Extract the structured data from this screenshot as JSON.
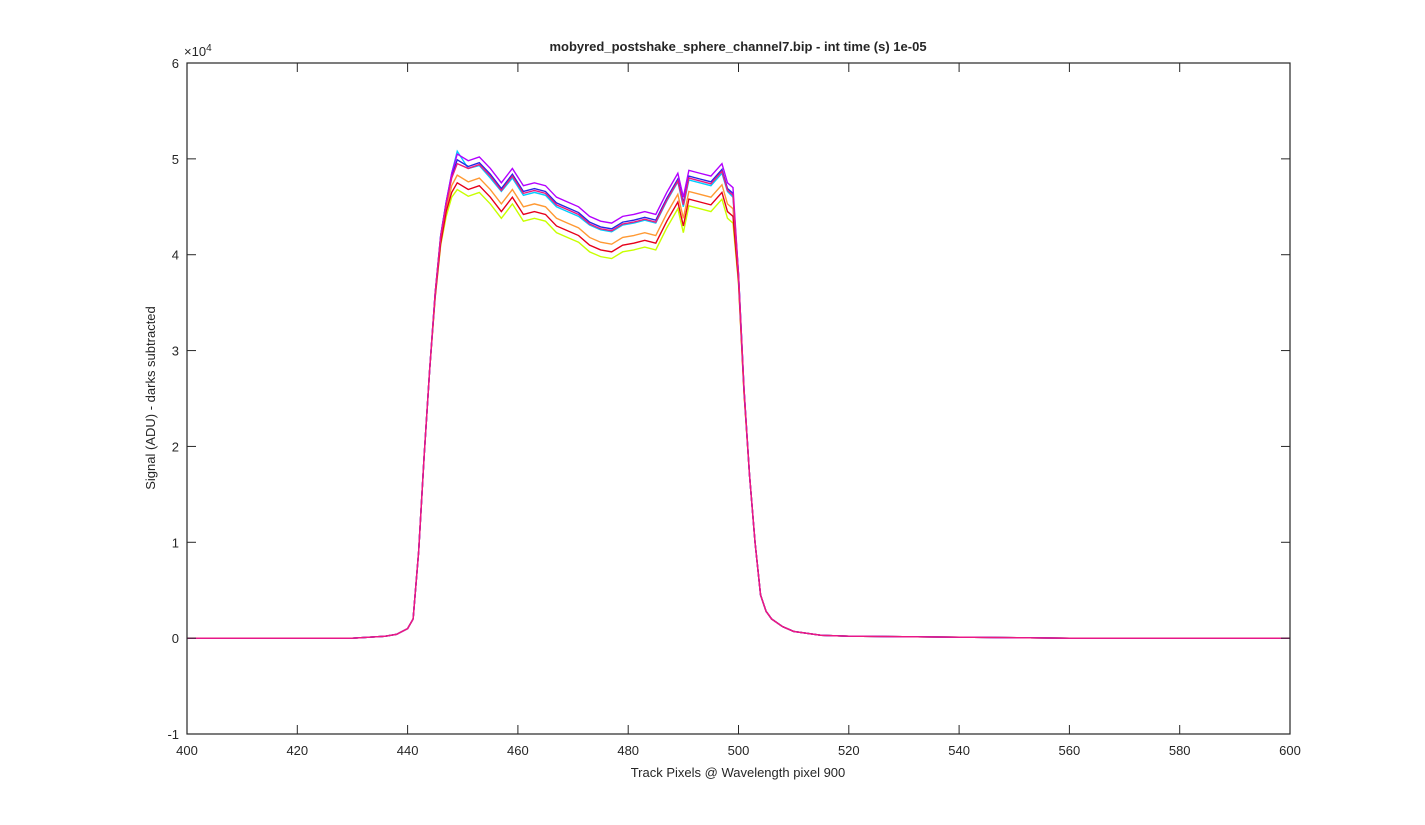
{
  "chart_data": {
    "type": "line",
    "title": "mobyred_postshake_sphere_channel7.bip - int time (s) 1e-05",
    "x_label": "Track Pixels @ Wavelength pixel 900",
    "y_label": "Signal (ADU) - darks subtracted",
    "y_multiplier": {
      "base": "×10",
      "exponent": "4"
    },
    "xlim": [
      400,
      600
    ],
    "xticks": [
      400,
      420,
      440,
      460,
      480,
      500,
      520,
      540,
      560,
      580,
      600
    ],
    "ylim": [
      -1,
      6
    ],
    "yticks": [
      -1,
      0,
      1,
      2,
      3,
      4,
      5,
      6
    ],
    "grid": false,
    "x": [
      400,
      420,
      430,
      436,
      438,
      440,
      441,
      442,
      443,
      444,
      445,
      446,
      447,
      448,
      449,
      451,
      453,
      455,
      457,
      459,
      461,
      463,
      465,
      467,
      469,
      471,
      473,
      475,
      477,
      479,
      481,
      483,
      485,
      487,
      489,
      490,
      491,
      493,
      495,
      497,
      498,
      499,
      500,
      501,
      502,
      503,
      504,
      505,
      506,
      508,
      510,
      515,
      520,
      540,
      560,
      580,
      600
    ],
    "series": [
      {
        "color": "#c8ff00",
        "values": [
          0,
          0,
          0,
          0.02,
          0.04,
          0.1,
          0.2,
          0.9,
          1.9,
          2.8,
          3.55,
          4.1,
          4.4,
          4.6,
          4.68,
          4.61,
          4.65,
          4.53,
          4.38,
          4.53,
          4.35,
          4.38,
          4.35,
          4.23,
          4.18,
          4.13,
          4.03,
          3.98,
          3.96,
          4.03,
          4.05,
          4.08,
          4.05,
          4.28,
          4.48,
          4.23,
          4.51,
          4.48,
          4.45,
          4.58,
          4.38,
          4.33,
          3.7,
          2.55,
          1.7,
          1.0,
          0.45,
          0.28,
          0.2,
          0.12,
          0.07,
          0.03,
          0.02,
          0.01,
          0,
          0,
          0
        ]
      },
      {
        "color": "#ff9933",
        "values": [
          0,
          0,
          0,
          0.02,
          0.04,
          0.1,
          0.2,
          0.9,
          1.9,
          2.8,
          3.58,
          4.15,
          4.48,
          4.72,
          4.83,
          4.76,
          4.8,
          4.68,
          4.53,
          4.68,
          4.5,
          4.53,
          4.5,
          4.38,
          4.33,
          4.28,
          4.18,
          4.13,
          4.11,
          4.18,
          4.2,
          4.23,
          4.2,
          4.43,
          4.63,
          4.38,
          4.66,
          4.63,
          4.6,
          4.73,
          4.53,
          4.48,
          3.75,
          2.58,
          1.7,
          1.0,
          0.45,
          0.28,
          0.2,
          0.12,
          0.07,
          0.03,
          0.02,
          0.01,
          0,
          0,
          0
        ]
      },
      {
        "color": "#e6001a",
        "values": [
          0,
          0,
          0,
          0.02,
          0.04,
          0.1,
          0.2,
          0.9,
          1.9,
          2.8,
          3.56,
          4.12,
          4.45,
          4.65,
          4.75,
          4.68,
          4.72,
          4.6,
          4.45,
          4.6,
          4.42,
          4.45,
          4.42,
          4.3,
          4.25,
          4.2,
          4.1,
          4.05,
          4.03,
          4.1,
          4.12,
          4.15,
          4.12,
          4.35,
          4.55,
          4.3,
          4.58,
          4.55,
          4.52,
          4.65,
          4.45,
          4.4,
          3.72,
          2.56,
          1.7,
          1.0,
          0.45,
          0.28,
          0.2,
          0.12,
          0.07,
          0.03,
          0.02,
          0.01,
          0,
          0,
          0
        ]
      },
      {
        "color": "#00ccff",
        "values": [
          0,
          0,
          0,
          0.02,
          0.04,
          0.1,
          0.2,
          0.9,
          1.9,
          2.8,
          3.6,
          4.2,
          4.55,
          4.85,
          5.08,
          4.9,
          4.93,
          4.8,
          4.66,
          4.8,
          4.62,
          4.65,
          4.62,
          4.5,
          4.45,
          4.4,
          4.31,
          4.26,
          4.24,
          4.31,
          4.33,
          4.36,
          4.33,
          4.56,
          4.76,
          4.5,
          4.78,
          4.75,
          4.72,
          4.85,
          4.66,
          4.6,
          3.8,
          2.6,
          1.7,
          1.0,
          0.45,
          0.28,
          0.2,
          0.12,
          0.07,
          0.03,
          0.02,
          0.01,
          0,
          0,
          0
        ]
      },
      {
        "color": "#2626e6",
        "values": [
          0,
          0,
          0,
          0.02,
          0.04,
          0.1,
          0.2,
          0.9,
          1.9,
          2.8,
          3.6,
          4.2,
          4.55,
          4.82,
          4.99,
          4.92,
          4.96,
          4.84,
          4.69,
          4.84,
          4.66,
          4.69,
          4.66,
          4.54,
          4.49,
          4.44,
          4.34,
          4.29,
          4.27,
          4.34,
          4.36,
          4.39,
          4.36,
          4.59,
          4.79,
          4.54,
          4.82,
          4.79,
          4.76,
          4.89,
          4.69,
          4.64,
          3.8,
          2.6,
          1.7,
          1.0,
          0.45,
          0.28,
          0.2,
          0.12,
          0.07,
          0.03,
          0.02,
          0.01,
          0,
          0,
          0
        ]
      },
      {
        "color": "#b300ff",
        "values": [
          0,
          0,
          0,
          0.02,
          0.04,
          0.1,
          0.2,
          0.9,
          1.9,
          2.8,
          3.6,
          4.2,
          4.55,
          4.85,
          5.05,
          4.98,
          5.02,
          4.9,
          4.75,
          4.9,
          4.72,
          4.75,
          4.72,
          4.6,
          4.55,
          4.5,
          4.4,
          4.35,
          4.33,
          4.4,
          4.42,
          4.45,
          4.42,
          4.65,
          4.85,
          4.6,
          4.88,
          4.85,
          4.82,
          4.95,
          4.75,
          4.7,
          3.8,
          2.6,
          1.7,
          1.0,
          0.45,
          0.28,
          0.2,
          0.12,
          0.07,
          0.03,
          0.02,
          0.01,
          0,
          0,
          0
        ]
      },
      {
        "color": "#f0197d",
        "values": [
          0,
          0,
          0,
          0.02,
          0.04,
          0.1,
          0.2,
          0.9,
          1.9,
          2.8,
          3.6,
          4.18,
          4.52,
          4.8,
          4.95,
          4.9,
          4.94,
          4.82,
          4.67,
          4.82,
          4.64,
          4.67,
          4.64,
          4.52,
          4.47,
          4.42,
          4.32,
          4.27,
          4.25,
          4.32,
          4.34,
          4.37,
          4.34,
          4.57,
          4.77,
          4.52,
          4.8,
          4.77,
          4.74,
          4.87,
          4.67,
          4.62,
          3.78,
          2.6,
          1.7,
          1.0,
          0.45,
          0.28,
          0.2,
          0.12,
          0.07,
          0.03,
          0.02,
          0.01,
          0,
          0,
          0
        ]
      }
    ]
  }
}
